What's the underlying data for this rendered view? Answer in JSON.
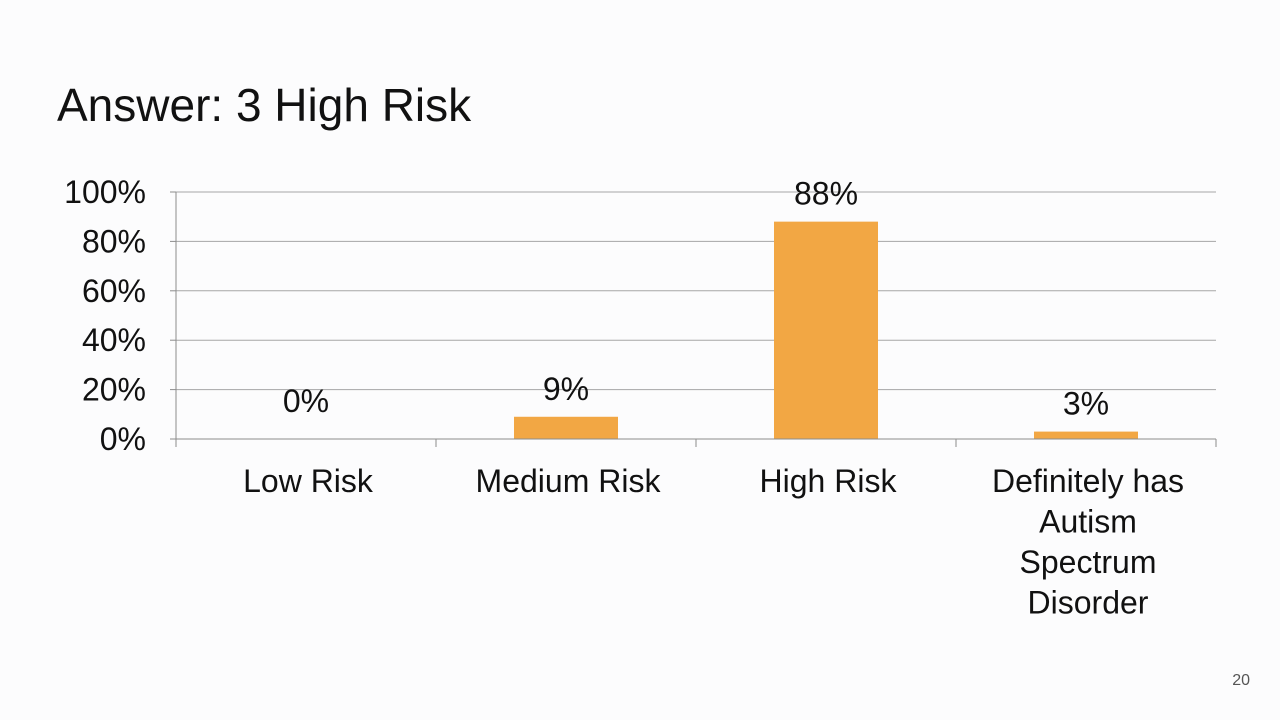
{
  "slide": {
    "title": "Answer: 3 High Risk",
    "page_number": "20"
  },
  "colors": {
    "bar": "#f2a744",
    "gridline": "#a6a6a6",
    "axis": "#8c8c8c",
    "text": "#111111"
  },
  "chart_data": {
    "type": "bar",
    "title": "",
    "xlabel": "",
    "ylabel": "",
    "categories": [
      [
        "Low Risk"
      ],
      [
        "Medium Risk"
      ],
      [
        "High Risk"
      ],
      [
        "Definitely has",
        "Autism",
        "Spectrum",
        "Disorder"
      ]
    ],
    "values": [
      0,
      9,
      88,
      3
    ],
    "data_labels": [
      "0%",
      "9%",
      "88%",
      "3%"
    ],
    "ylim": [
      0,
      100
    ],
    "yticks": [
      0,
      20,
      40,
      60,
      80,
      100
    ],
    "ytick_labels": [
      "0%",
      "20%",
      "40%",
      "60%",
      "80%",
      "100%"
    ],
    "grid": true,
    "legend": "none"
  }
}
